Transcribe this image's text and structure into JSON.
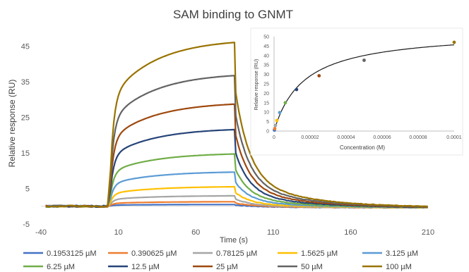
{
  "chart_data": [
    {
      "type": "line",
      "title": "SAM binding to GNMT",
      "xlabel": "Time (s)",
      "ylabel": "Relative response (RU)",
      "xlim": [
        -40,
        210
      ],
      "ylim": [
        -5,
        50
      ],
      "xticks": [
        "-40",
        "10",
        "60",
        "110",
        "160",
        "210"
      ],
      "yticks": [
        "-5",
        "5",
        "15",
        "25",
        "35",
        "45"
      ],
      "grid": false,
      "legend_position": "bottom",
      "injection": {
        "start": 5,
        "end": 85
      },
      "series": [
        {
          "name": "0.1953125 µM",
          "color": "#4472C4",
          "plateau": 0.5
        },
        {
          "name": "0.390625 µM",
          "color": "#ED7D31",
          "plateau": 1.3
        },
        {
          "name": "0.78125 µM",
          "color": "#A5A5A5",
          "plateau": 3.0
        },
        {
          "name": "1.5625 µM",
          "color": "#FFC000",
          "plateau": 5.6
        },
        {
          "name": "3.125 µM",
          "color": "#5B9BD5",
          "plateau": 9.8
        },
        {
          "name": "6.25 µM",
          "color": "#70AD47",
          "plateau": 15.0
        },
        {
          "name": "12.5 µM",
          "color": "#264478",
          "plateau": 22.0
        },
        {
          "name": "25 µM",
          "color": "#9E480E",
          "plateau": 29.3
        },
        {
          "name": "50 µM",
          "color": "#636363",
          "plateau": 37.5
        },
        {
          "name": "100 µM",
          "color": "#997300",
          "plateau": 47.0
        }
      ]
    },
    {
      "type": "scatter",
      "xlabel": "Concentration (M)",
      "ylabel": "Relative response (RU)",
      "xlim": [
        0,
        0.0001
      ],
      "ylim": [
        0,
        50
      ],
      "xticks": [
        "0",
        "0.00002",
        "0.00004",
        "0.00006",
        "0.00008",
        "0.0001"
      ],
      "yticks": [
        "0",
        "5",
        "10",
        "15",
        "20",
        "25",
        "30",
        "35",
        "40",
        "45",
        "50"
      ],
      "fit": {
        "Rmax": 53.2,
        "KD": 1.65e-05,
        "color": "#1a1a1a"
      },
      "points": [
        {
          "x": 1.953125e-07,
          "y": 0.5,
          "color": "#4472C4"
        },
        {
          "x": 3.90625e-07,
          "y": 1.3,
          "color": "#ED7D31"
        },
        {
          "x": 7.8125e-07,
          "y": 3.0,
          "color": "#A5A5A5"
        },
        {
          "x": 1.5625e-06,
          "y": 5.6,
          "color": "#FFC000"
        },
        {
          "x": 3.125e-06,
          "y": 9.8,
          "color": "#5B9BD5"
        },
        {
          "x": 6.25e-06,
          "y": 15.0,
          "color": "#70AD47"
        },
        {
          "x": 1.25e-05,
          "y": 22.0,
          "color": "#264478"
        },
        {
          "x": 2.5e-05,
          "y": 29.3,
          "color": "#9E480E"
        },
        {
          "x": 5e-05,
          "y": 37.5,
          "color": "#636363"
        },
        {
          "x": 0.0001,
          "y": 47.0,
          "color": "#997300"
        }
      ]
    }
  ]
}
